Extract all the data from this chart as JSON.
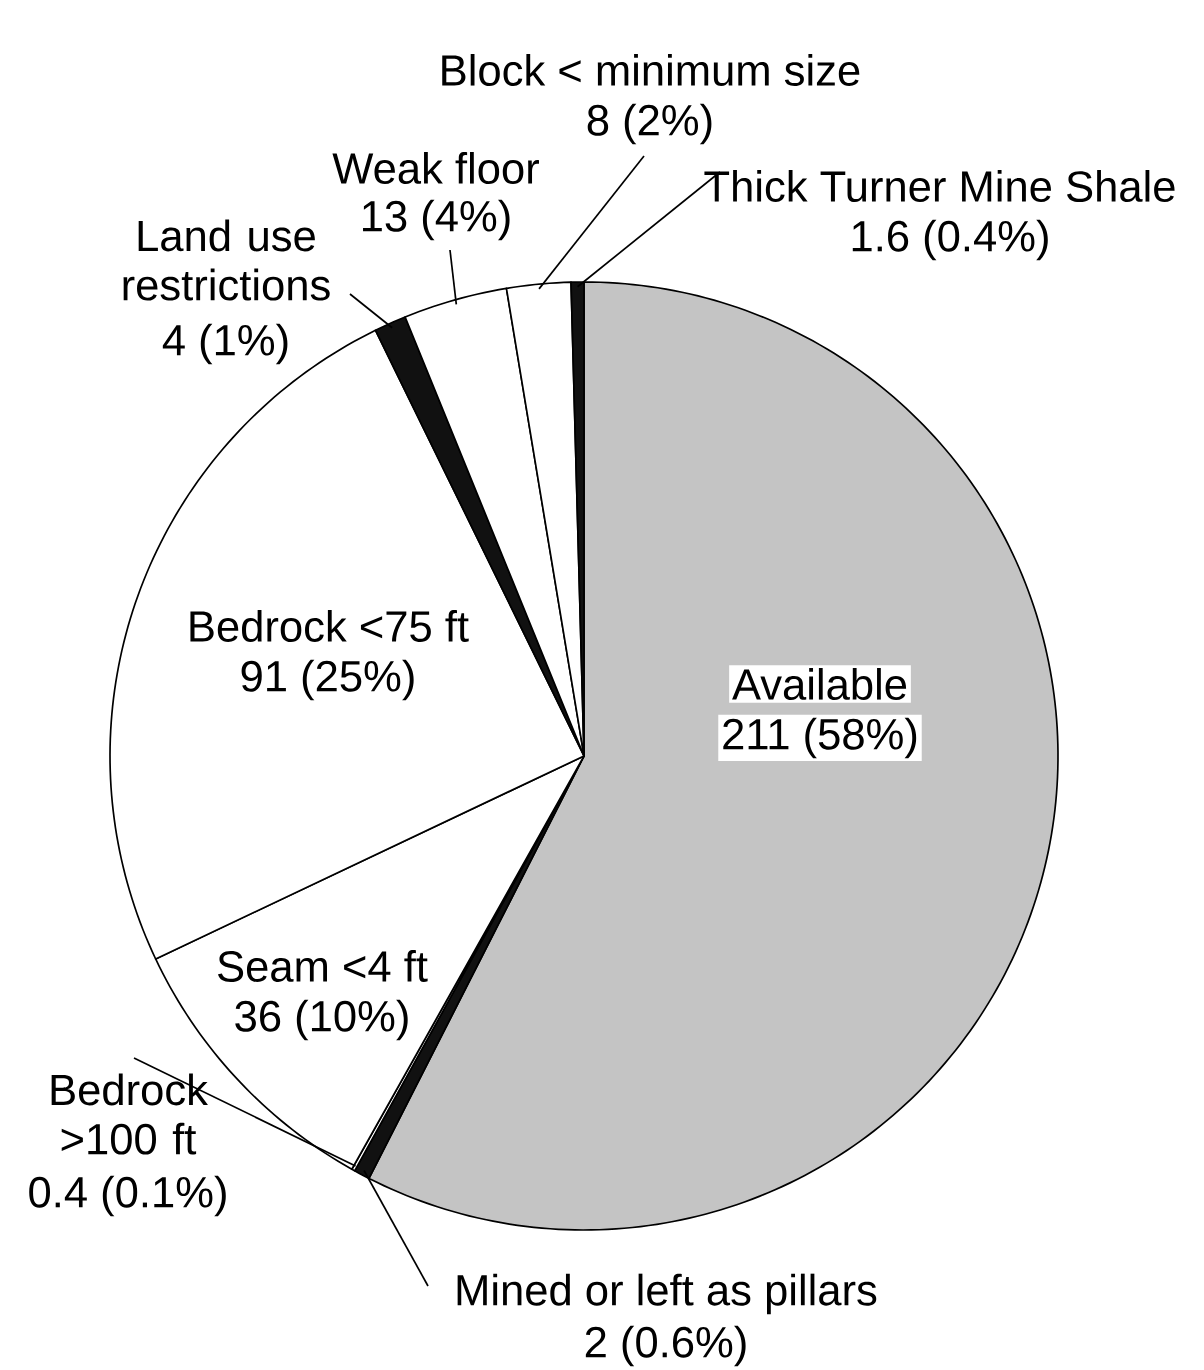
{
  "chart_data": {
    "type": "pie",
    "categories": [
      "Available",
      "Mined or left as pillars",
      "Bedrock >100 ft",
      "Seam <4 ft",
      "Bedrock <75 ft",
      "Land use restrictions",
      "Weak floor",
      "Block < minimum size",
      "Thick Turner Mine Shale"
    ],
    "values": [
      211,
      2,
      0.4,
      36,
      91,
      4,
      13,
      8,
      1.6
    ],
    "value_labels": [
      "211 (58%)",
      "2 (0.6%)",
      "0.4 (0.1%)",
      "36 (10%)",
      "91 (25%)",
      "4 (1%)",
      "13 (4%)",
      "8 (2%)",
      "1.6 (0.4%)"
    ],
    "colors": [
      "#c4c4c4",
      "#111111",
      "#ffffff",
      "#ffffff",
      "#ffffff",
      "#111111",
      "#ffffff",
      "#ffffff",
      "#111111"
    ]
  }
}
